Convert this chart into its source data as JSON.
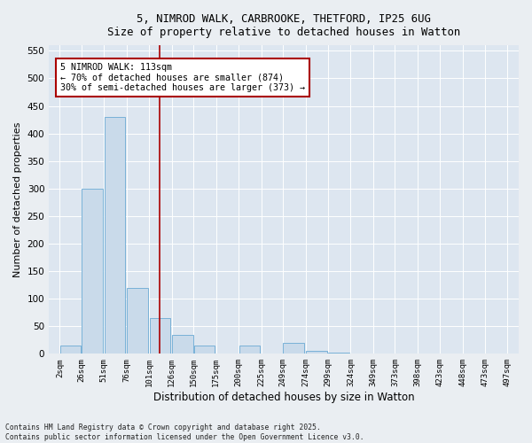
{
  "title_line1": "5, NIMROD WALK, CARBROOKE, THETFORD, IP25 6UG",
  "title_line2": "Size of property relative to detached houses in Watton",
  "xlabel": "Distribution of detached houses by size in Watton",
  "ylabel": "Number of detached properties",
  "annotation_line1": "5 NIMROD WALK: 113sqm",
  "annotation_line2": "← 70% of detached houses are smaller (874)",
  "annotation_line3": "30% of semi-detached houses are larger (373) →",
  "footer_line1": "Contains HM Land Registry data © Crown copyright and database right 2025.",
  "footer_line2": "Contains public sector information licensed under the Open Government Licence v3.0.",
  "property_size": 113,
  "red_line_x": 113,
  "bar_color": "#c9daea",
  "bar_edge_color": "#6aaad4",
  "background_color": "#dde6f0",
  "fig_background": "#eaeef2",
  "red_color": "#aa0000",
  "bins_left": [
    2,
    26,
    51,
    76,
    101,
    126,
    150,
    175,
    200,
    225,
    249,
    274,
    299,
    324,
    349,
    373,
    398,
    423,
    448,
    473
  ],
  "bin_width": 24,
  "bin_labels": [
    "2sqm",
    "26sqm",
    "51sqm",
    "76sqm",
    "101sqm",
    "126sqm",
    "150sqm",
    "175sqm",
    "200sqm",
    "225sqm",
    "249sqm",
    "274sqm",
    "299sqm",
    "324sqm",
    "349sqm",
    "373sqm",
    "398sqm",
    "423sqm",
    "448sqm",
    "473sqm",
    "497sqm"
  ],
  "bar_heights": [
    15,
    300,
    430,
    120,
    65,
    35,
    15,
    0,
    15,
    0,
    20,
    5,
    2,
    1,
    1,
    0,
    0,
    0,
    0,
    1
  ],
  "ylim": [
    0,
    560
  ],
  "yticks": [
    0,
    50,
    100,
    150,
    200,
    250,
    300,
    350,
    400,
    450,
    500,
    550
  ],
  "xlim_left": -10,
  "xlim_right": 510
}
